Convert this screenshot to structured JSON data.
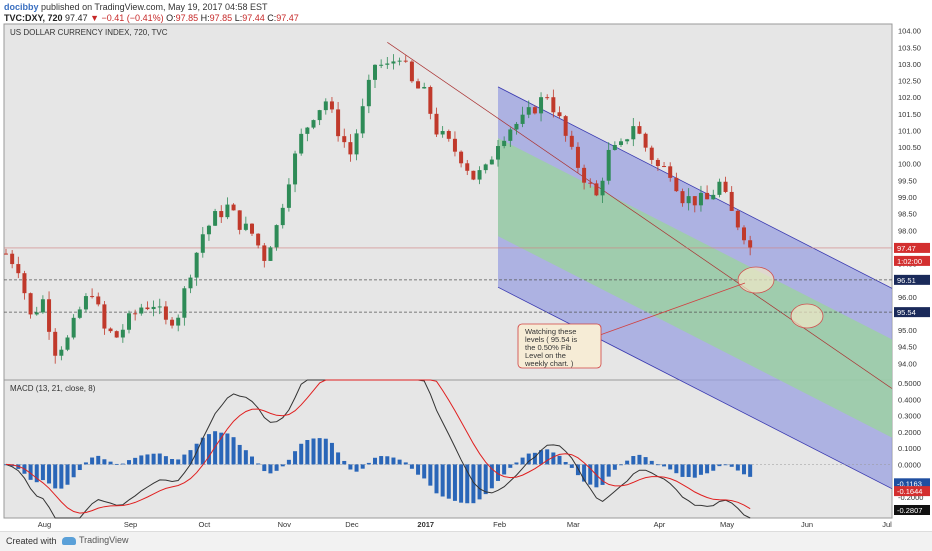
{
  "header": {
    "user": "docibby",
    "published": "published on TradingView.com, May 19, 2017 04:58 EST",
    "symbol": "TVC:DXY, 720",
    "last": "97.47",
    "change": "−0.41 (−0.41%)",
    "open_label": "O:",
    "open": "97.85",
    "high_label": "H:",
    "high": "97.85",
    "low_label": "L:",
    "low": "97.44",
    "close_label": "C:",
    "close": "97.47"
  },
  "footer": {
    "created": "Created with",
    "brand": "TradingView"
  },
  "colors": {
    "up": "#2e8b57",
    "down": "#c0392b",
    "macd": "#333333",
    "signal": "#e02020",
    "hist": "#2a66b8",
    "channel_outer": "#9aa0e0",
    "channel_inner": "#9bd49b"
  },
  "chart_data": [
    {
      "type": "candlestick",
      "title": "US DOLLAR CURRENCY INDEX, 720, TVC",
      "ylim": [
        93.5,
        104.2
      ],
      "yticks": [
        "104.00",
        "103.50",
        "103.00",
        "102.50",
        "102.00",
        "101.50",
        "101.00",
        "100.50",
        "100.00",
        "99.50",
        "99.00",
        "98.50",
        "98.00",
        "97.50",
        "97.00",
        "96.50",
        "96.00",
        "95.50",
        "95.00",
        "94.50",
        "94.00"
      ],
      "xticks": [
        "Aug",
        "Sep",
        "Oct",
        "Nov",
        "Dec",
        "2017",
        "Feb",
        "Mar",
        "Apr",
        "May",
        "Jun",
        "Jul"
      ],
      "path": [
        [
          0,
          97.3
        ],
        [
          2,
          96.9
        ],
        [
          4,
          95.4
        ],
        [
          6,
          95.9
        ],
        [
          8,
          94.4
        ],
        [
          10,
          94.7
        ],
        [
          12,
          95.6
        ],
        [
          14,
          96.2
        ],
        [
          16,
          95.0
        ],
        [
          18,
          94.8
        ],
        [
          20,
          95.3
        ],
        [
          22,
          95.7
        ],
        [
          24,
          95.8
        ],
        [
          26,
          95.2
        ],
        [
          28,
          95.5
        ],
        [
          30,
          96.8
        ],
        [
          32,
          97.9
        ],
        [
          34,
          98.4
        ],
        [
          36,
          98.7
        ],
        [
          38,
          98.2
        ],
        [
          40,
          97.9
        ],
        [
          42,
          97.2
        ],
        [
          44,
          98.1
        ],
        [
          46,
          99.6
        ],
        [
          48,
          100.8
        ],
        [
          50,
          101.5
        ],
        [
          52,
          101.9
        ],
        [
          54,
          101.0
        ],
        [
          56,
          100.3
        ],
        [
          58,
          101.6
        ],
        [
          60,
          103.0
        ],
        [
          62,
          102.9
        ],
        [
          64,
          103.3
        ],
        [
          66,
          102.4
        ],
        [
          68,
          102.1
        ],
        [
          70,
          101.0
        ],
        [
          72,
          100.6
        ],
        [
          74,
          100.2
        ],
        [
          76,
          99.6
        ],
        [
          78,
          99.8
        ],
        [
          80,
          100.7
        ],
        [
          82,
          101.1
        ],
        [
          84,
          101.3
        ],
        [
          86,
          101.7
        ],
        [
          88,
          102.1
        ],
        [
          90,
          101.3
        ],
        [
          92,
          100.3
        ],
        [
          94,
          99.6
        ],
        [
          96,
          99.0
        ],
        [
          98,
          100.3
        ],
        [
          100,
          100.5
        ],
        [
          102,
          101.2
        ],
        [
          104,
          100.5
        ],
        [
          106,
          99.9
        ],
        [
          108,
          99.8
        ],
        [
          110,
          99.0
        ],
        [
          112,
          98.9
        ],
        [
          114,
          98.9
        ],
        [
          116,
          99.4
        ],
        [
          118,
          98.5
        ],
        [
          120,
          97.9
        ],
        [
          121,
          97.47
        ]
      ],
      "dates": [
        "Jul 20",
        "Jul 22",
        "Jul 24",
        "Jul 27",
        "Jul 29",
        "Jul 31",
        "Aug 2",
        "Aug 4",
        "Aug 6",
        "Aug 8",
        "Aug 10",
        "Aug 12",
        "Aug 15",
        "Aug 17",
        "Aug 19",
        "Aug 21",
        "Aug 23",
        "Aug 25",
        "Aug 27",
        "Aug 29",
        "Aug 31",
        "Sep 2",
        "Sep 5",
        "Sep 7",
        "Sep 9",
        "Sep 11",
        "Sep 13",
        "Sep 15",
        "Sep 17",
        "Sep 19",
        "Sep 21",
        "Sep 24",
        "Sep 26",
        "Sep 28",
        "Sep 30",
        "Oct 2",
        "Oct 4",
        "Oct 6",
        "Oct 8",
        "Oct 10",
        "Oct 13",
        "Oct 15",
        "Oct 17",
        "Oct 19",
        "Oct 21",
        "Oct 23",
        "Oct 25",
        "Oct 27",
        "Oct 29",
        "Nov 1",
        "Nov 3",
        "Nov 5",
        "Nov 7",
        "Nov 9",
        "Nov 11",
        "Nov 13",
        "Nov 15",
        "Nov 18",
        "Nov 20",
        "Nov 22",
        "Nov 24",
        "Nov 26",
        "Nov 28",
        "Nov 30",
        "Dec 2",
        "Dec 4",
        "Dec 7",
        "Dec 9",
        "Dec 11",
        "Dec 13",
        "Dec 15",
        "Dec 17",
        "Dec 19",
        "Dec 21",
        "Dec 23",
        "Dec 26",
        "Dec 28",
        "Dec 30",
        "Jan 1",
        "Jan 3",
        "Jan 5",
        "Jan 7",
        "Jan 9",
        "Jan 11",
        "Jan 14",
        "Jan 16",
        "Jan 18",
        "Jan 20",
        "Jan 22",
        "Jan 24",
        "Jan 26",
        "Jan 28",
        "Jan 30",
        "Feb 2",
        "Feb 4",
        "Feb 6",
        "Feb 8",
        "Feb 10",
        "Feb 12",
        "Feb 14",
        "Feb 16",
        "Feb 18",
        "Feb 21",
        "Feb 23",
        "Feb 25",
        "Feb 27",
        "Mar 1",
        "Mar 3",
        "Mar 5",
        "Mar 7",
        "Mar 10",
        "Mar 12",
        "Mar 14",
        "Mar 16",
        "Mar 18",
        "Mar 20",
        "Mar 22",
        "Mar 24",
        "Mar 27",
        "Mar 29",
        "Mar 31",
        "Apr 2",
        "Apr 4",
        "Apr 6",
        "Apr 8",
        "Apr 10",
        "Apr 12",
        "Apr 14",
        "Apr 17",
        "Apr 19",
        "Apr 21",
        "Apr 23",
        "Apr 25",
        "Apr 27",
        "Apr 29",
        "May 1",
        "May 3",
        "May 5",
        "May 8",
        "May 10",
        "May 12",
        "May 14",
        "May 16",
        "May 18"
      ],
      "price_labels": [
        {
          "text": "97.47",
          "y": 97.47,
          "bg": "#d32f2f"
        },
        {
          "text": "1:02:00",
          "y": 97.2,
          "bg": "#d32f2f"
        },
        {
          "text": "96.51",
          "y": 96.51,
          "bg": "#1a2a5a"
        },
        {
          "text": "95.54",
          "y": 95.54,
          "bg": "#1a2a5a"
        }
      ],
      "horizontal_lines": [
        97.47,
        96.51,
        95.54
      ],
      "annotation": {
        "lines": [
          "Watching these",
          "levels ( 95.54 is",
          "the 0.50% Fib",
          "Level on the",
          "weekly chart. )"
        ]
      }
    },
    {
      "type": "line",
      "title": "MACD (13, 21, close, 8)",
      "ylim": [
        -0.33,
        0.52
      ],
      "yticks": [
        "0.5000",
        "0.4000",
        "0.3000",
        "0.2000",
        "0.1000",
        "0.0000",
        "-0.1000",
        "-0.2000"
      ],
      "price_labels": [
        {
          "text": "-0.1163",
          "y": -0.1163,
          "bg": "#1f4fa0"
        },
        {
          "text": "-0.1644",
          "y": -0.1644,
          "bg": "#d32f2f"
        },
        {
          "text": "-0.2807",
          "y": -0.2807,
          "bg": "#111111"
        }
      ]
    }
  ]
}
